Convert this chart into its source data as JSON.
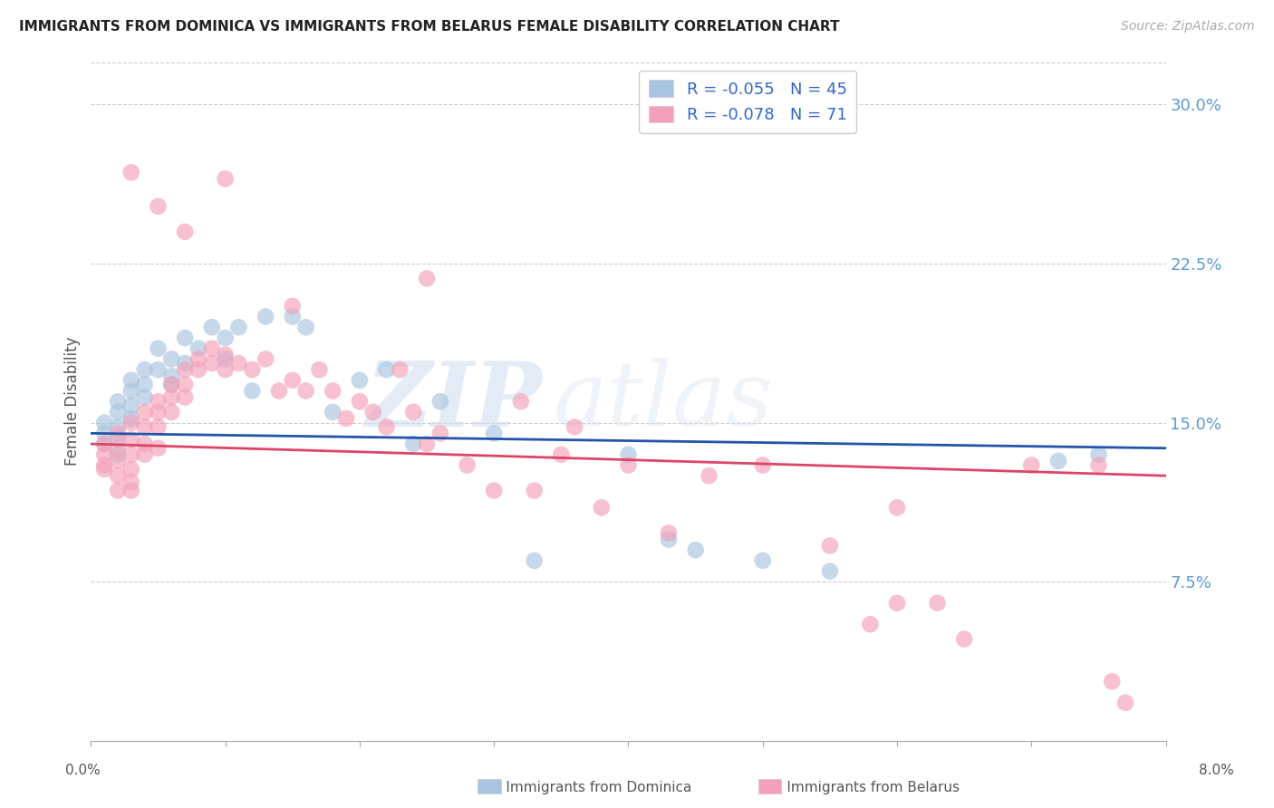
{
  "title": "IMMIGRANTS FROM DOMINICA VS IMMIGRANTS FROM BELARUS FEMALE DISABILITY CORRELATION CHART",
  "source": "Source: ZipAtlas.com",
  "ylabel": "Female Disability",
  "ytick_labels": [
    "30.0%",
    "22.5%",
    "15.0%",
    "7.5%"
  ],
  "ytick_values": [
    0.3,
    0.225,
    0.15,
    0.075
  ],
  "xlim": [
    0.0,
    0.08
  ],
  "ylim": [
    0.0,
    0.32
  ],
  "legend_1_label": "R = -0.055   N = 45",
  "legend_2_label": "R = -0.078   N = 71",
  "dominica_color": "#a8c4e0",
  "belarus_color": "#f4a0b8",
  "dominica_line_color": "#2255aa",
  "belarus_line_color": "#dd4466",
  "watermark_zip": "ZIP",
  "watermark_atlas": "atlas",
  "dominica_x": [
    0.001,
    0.001,
    0.001,
    0.002,
    0.002,
    0.002,
    0.002,
    0.002,
    0.003,
    0.003,
    0.003,
    0.003,
    0.004,
    0.004,
    0.004,
    0.005,
    0.005,
    0.006,
    0.006,
    0.006,
    0.007,
    0.007,
    0.008,
    0.009,
    0.01,
    0.01,
    0.011,
    0.012,
    0.013,
    0.015,
    0.016,
    0.018,
    0.02,
    0.022,
    0.024,
    0.026,
    0.03,
    0.033,
    0.04,
    0.043,
    0.045,
    0.05,
    0.055,
    0.072,
    0.075
  ],
  "dominica_y": [
    0.145,
    0.15,
    0.14,
    0.155,
    0.148,
    0.135,
    0.16,
    0.142,
    0.165,
    0.158,
    0.17,
    0.152,
    0.175,
    0.168,
    0.162,
    0.175,
    0.185,
    0.18,
    0.172,
    0.168,
    0.19,
    0.178,
    0.185,
    0.195,
    0.19,
    0.18,
    0.195,
    0.165,
    0.2,
    0.2,
    0.195,
    0.155,
    0.17,
    0.175,
    0.14,
    0.16,
    0.145,
    0.085,
    0.135,
    0.095,
    0.09,
    0.085,
    0.08,
    0.132,
    0.135
  ],
  "belarus_x": [
    0.001,
    0.001,
    0.001,
    0.001,
    0.002,
    0.002,
    0.002,
    0.002,
    0.002,
    0.003,
    0.003,
    0.003,
    0.003,
    0.003,
    0.003,
    0.004,
    0.004,
    0.004,
    0.004,
    0.005,
    0.005,
    0.005,
    0.005,
    0.006,
    0.006,
    0.006,
    0.007,
    0.007,
    0.007,
    0.008,
    0.008,
    0.009,
    0.009,
    0.01,
    0.01,
    0.011,
    0.012,
    0.013,
    0.014,
    0.015,
    0.016,
    0.017,
    0.018,
    0.019,
    0.02,
    0.021,
    0.022,
    0.023,
    0.024,
    0.025,
    0.026,
    0.028,
    0.03,
    0.032,
    0.033,
    0.035,
    0.036,
    0.038,
    0.04,
    0.043,
    0.046,
    0.05,
    0.055,
    0.058,
    0.06,
    0.063,
    0.065,
    0.07,
    0.075,
    0.076,
    0.077
  ],
  "belarus_y": [
    0.135,
    0.14,
    0.13,
    0.128,
    0.145,
    0.138,
    0.132,
    0.125,
    0.118,
    0.15,
    0.142,
    0.135,
    0.128,
    0.122,
    0.118,
    0.155,
    0.148,
    0.14,
    0.135,
    0.16,
    0.155,
    0.148,
    0.138,
    0.168,
    0.162,
    0.155,
    0.175,
    0.168,
    0.162,
    0.18,
    0.175,
    0.185,
    0.178,
    0.182,
    0.175,
    0.178,
    0.175,
    0.18,
    0.165,
    0.17,
    0.165,
    0.175,
    0.165,
    0.152,
    0.16,
    0.155,
    0.148,
    0.175,
    0.155,
    0.14,
    0.145,
    0.13,
    0.118,
    0.16,
    0.118,
    0.135,
    0.148,
    0.11,
    0.13,
    0.098,
    0.125,
    0.13,
    0.092,
    0.055,
    0.11,
    0.065,
    0.048,
    0.13,
    0.13,
    0.028,
    0.018
  ],
  "belarus_high_x": [
    0.003,
    0.005,
    0.007,
    0.01,
    0.015,
    0.025,
    0.06
  ],
  "belarus_high_y": [
    0.268,
    0.252,
    0.24,
    0.265,
    0.205,
    0.218,
    0.065
  ]
}
